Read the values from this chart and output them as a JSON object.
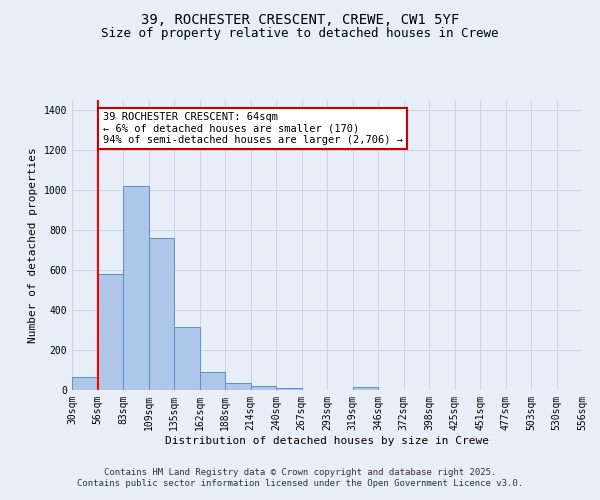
{
  "title_line1": "39, ROCHESTER CRESCENT, CREWE, CW1 5YF",
  "title_line2": "Size of property relative to detached houses in Crewe",
  "xlabel": "Distribution of detached houses by size in Crewe",
  "ylabel": "Number of detached properties",
  "bar_values": [
    65,
    580,
    1020,
    760,
    315,
    90,
    37,
    22,
    12,
    0,
    0,
    14,
    0,
    0,
    0,
    0,
    0,
    0,
    0,
    0
  ],
  "bin_labels": [
    "30sqm",
    "56sqm",
    "83sqm",
    "109sqm",
    "135sqm",
    "162sqm",
    "188sqm",
    "214sqm",
    "240sqm",
    "267sqm",
    "293sqm",
    "319sqm",
    "346sqm",
    "372sqm",
    "398sqm",
    "425sqm",
    "451sqm",
    "477sqm",
    "503sqm",
    "530sqm",
    "556sqm"
  ],
  "bar_color": "#aec6e8",
  "bar_edge_color": "#5b8fc9",
  "grid_color": "#c8d4e8",
  "bg_color": "#e8eef8",
  "red_line_x": 1.0,
  "annotation_text": "39 ROCHESTER CRESCENT: 64sqm\n← 6% of detached houses are smaller (170)\n94% of semi-detached houses are larger (2,706) →",
  "annotation_box_color": "#ffffff",
  "annotation_box_edge": "#cc0000",
  "ylim": [
    0,
    1450
  ],
  "yticks": [
    0,
    200,
    400,
    600,
    800,
    1000,
    1200,
    1400
  ],
  "footer_line1": "Contains HM Land Registry data © Crown copyright and database right 2025.",
  "footer_line2": "Contains public sector information licensed under the Open Government Licence v3.0.",
  "title1_fontsize": 10,
  "title2_fontsize": 9,
  "xlabel_fontsize": 8,
  "ylabel_fontsize": 8,
  "tick_fontsize": 7,
  "annotation_fontsize": 7.5,
  "footer_fontsize": 6.5
}
